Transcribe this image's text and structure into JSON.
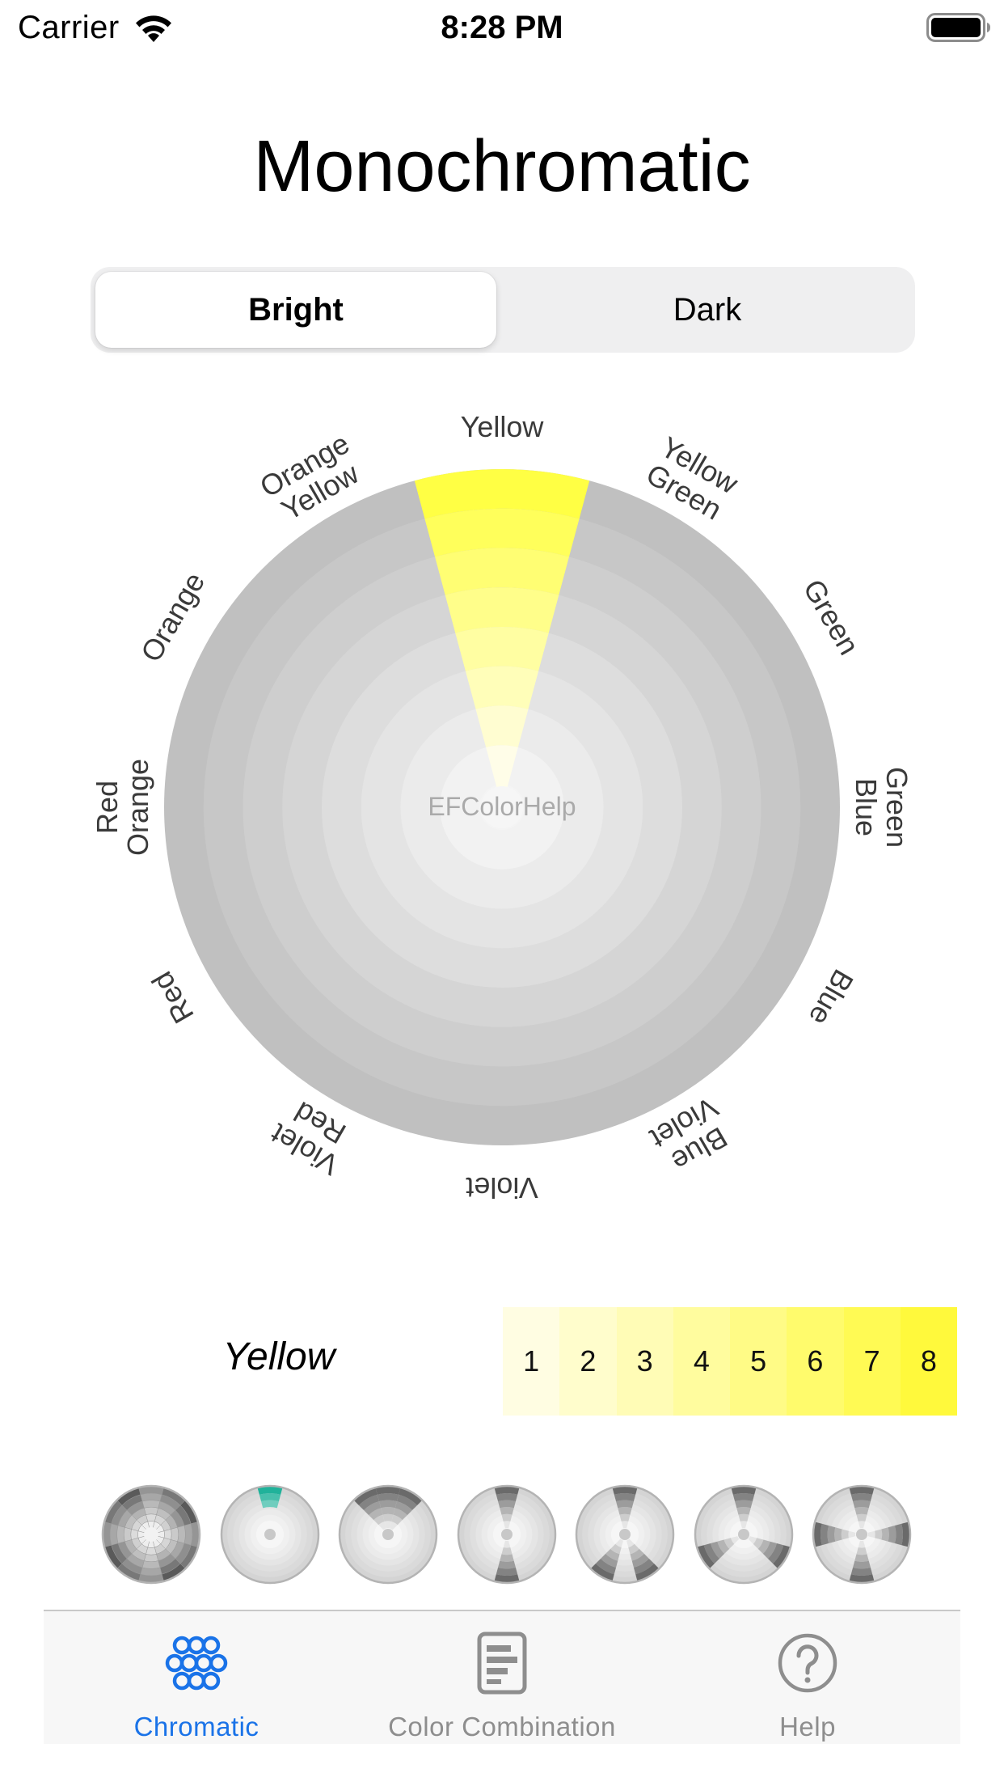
{
  "status_bar": {
    "carrier": "Carrier",
    "time": "8:28 PM",
    "wifi_icon": "wifi-icon",
    "battery_icon": "battery-full-icon"
  },
  "title": "Monochromatic",
  "segments": [
    {
      "label": "Bright",
      "selected": true
    },
    {
      "label": "Dark",
      "selected": false
    }
  ],
  "wheel": {
    "center_label": "EFColorHelp",
    "selected_hue": "Yellow",
    "selected_color": "#ffff44",
    "base_color": "#c0c0c0",
    "hues": [
      [
        "Yellow"
      ],
      [
        "Yellow",
        "Green"
      ],
      [
        "Green"
      ],
      [
        "Green",
        "Blue"
      ],
      [
        "Blue"
      ],
      [
        "Blue",
        "Violet"
      ],
      [
        "Violet"
      ],
      [
        "Violet",
        "Red"
      ],
      [
        "Red"
      ],
      [
        "Red",
        "Orange"
      ],
      [
        "Orange"
      ],
      [
        "Orange",
        "Yellow"
      ]
    ]
  },
  "selected": {
    "name": "Yellow",
    "tones": [
      {
        "label": "1",
        "color": "#fffde2"
      },
      {
        "label": "2",
        "color": "#fffdcc"
      },
      {
        "label": "3",
        "color": "#fffcb6"
      },
      {
        "label": "4",
        "color": "#fffc9e"
      },
      {
        "label": "5",
        "color": "#fffb86"
      },
      {
        "label": "6",
        "color": "#fffb6c"
      },
      {
        "label": "7",
        "color": "#fffa54"
      },
      {
        "label": "8",
        "color": "#fff93c"
      }
    ]
  },
  "thumbnails": [
    {
      "name": "full-wheel-thumb"
    },
    {
      "name": "monochromatic-thumb",
      "accent": "#20b29a"
    },
    {
      "name": "analogous-thumb"
    },
    {
      "name": "complementary-thumb"
    },
    {
      "name": "split-complementary-thumb"
    },
    {
      "name": "triadic-thumb"
    },
    {
      "name": "tetradic-thumb"
    }
  ],
  "tabs": [
    {
      "label": "Chromatic",
      "icon": "circles-icon",
      "active": true,
      "color": "#1a73e8"
    },
    {
      "label": "Color Combination",
      "icon": "document-icon",
      "active": false,
      "color": "#8e8e8e"
    },
    {
      "label": "Help",
      "icon": "question-circle-icon",
      "active": false,
      "color": "#8e8e8e"
    }
  ]
}
